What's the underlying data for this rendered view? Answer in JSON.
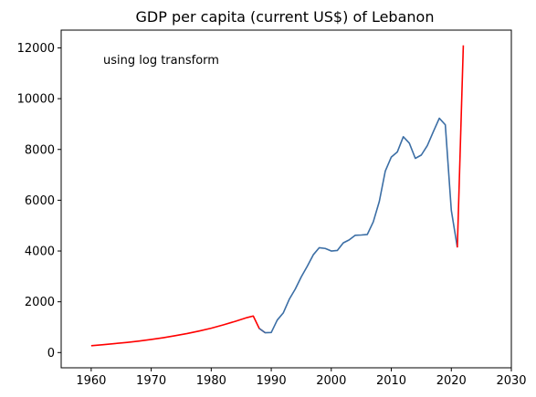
{
  "chart_data": {
    "type": "line",
    "title": "GDP per capita (current US$) of Lebanon",
    "annotation": "using log transform",
    "xlabel": "",
    "ylabel": "",
    "xlim": [
      1955,
      2030
    ],
    "ylim": [
      -600,
      12700
    ],
    "xticks": [
      1960,
      1970,
      1980,
      1990,
      2000,
      2010,
      2020,
      2030
    ],
    "yticks": [
      0,
      2000,
      4000,
      6000,
      8000,
      10000,
      12000
    ],
    "grid": false,
    "colors": {
      "estimated": "#ff0000",
      "actual": "#3b6ea5"
    },
    "series": [
      {
        "role": "estimated",
        "color": "#ff0000",
        "x": [
          1960,
          1962,
          1964,
          1966,
          1968,
          1970,
          1972,
          1974,
          1976,
          1978,
          1980,
          1982,
          1984,
          1986,
          1987,
          1988,
          1989
        ],
        "y": [
          270,
          310,
          355,
          400,
          455,
          515,
          585,
          665,
          750,
          850,
          960,
          1090,
          1230,
          1380,
          1440,
          950,
          780
        ]
      },
      {
        "role": "actual",
        "color": "#3b6ea5",
        "x": [
          1988,
          1989,
          1990,
          1991,
          1992,
          1993,
          1994,
          1995,
          1996,
          1997,
          1998,
          1999,
          2000,
          2001,
          2002,
          2003,
          2004,
          2005,
          2006,
          2007,
          2008,
          2009,
          2010,
          2011,
          2012,
          2013,
          2014,
          2015,
          2016,
          2017,
          2018,
          2019,
          2020,
          2021
        ],
        "y": [
          950,
          780,
          790,
          1280,
          1560,
          2100,
          2500,
          2980,
          3400,
          3850,
          4130,
          4100,
          4000,
          4020,
          4320,
          4440,
          4620,
          4630,
          4650,
          5150,
          5950,
          7150,
          7700,
          7900,
          8500,
          8250,
          7650,
          7780,
          8150,
          8700,
          9230,
          8970,
          5600,
          4140
        ]
      },
      {
        "role": "estimated",
        "color": "#ff0000",
        "x": [
          2021,
          2022
        ],
        "y": [
          4140,
          12100
        ]
      }
    ]
  }
}
